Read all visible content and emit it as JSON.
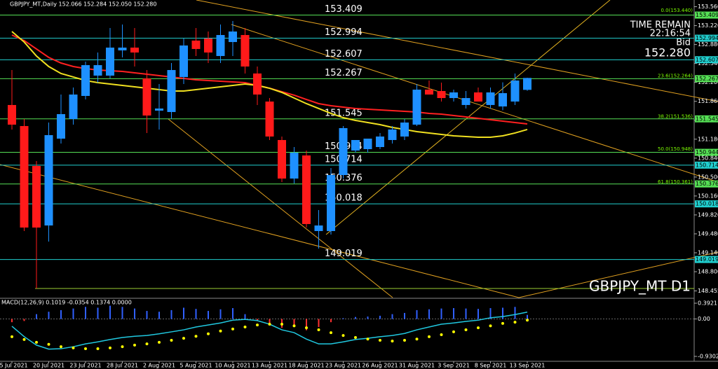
{
  "chart_data": {
    "type": "candlestick",
    "header": "GBPJPY_MT,Daily 152.066 152.284 152.050 152.280",
    "symbol_label": "GBPJPY_MT D1",
    "info": {
      "time_remain_label": "TIME REMAIN",
      "time": "22:16:54",
      "bid_label": "Bid",
      "bid": "152.280"
    },
    "categories": [
      "15 Jul 2021",
      null,
      null,
      "20 Jul 2021",
      null,
      null,
      "23 Jul 2021",
      null,
      null,
      "28 Jul 2021",
      null,
      null,
      "2 Aug 2021",
      null,
      null,
      "5 Aug 2021",
      null,
      null,
      "10 Aug 2021",
      null,
      null,
      "13 Aug 2021",
      null,
      null,
      "18 Aug 2021",
      null,
      null,
      "23 Aug 2021",
      null,
      null,
      "26 Aug 2021",
      null,
      null,
      "31 Aug 2021",
      null,
      null,
      "3 Sep 2021",
      null,
      null,
      "8 Sep 2021",
      null,
      null,
      "13 Sep 2021"
    ],
    "open": [
      151.794,
      151.416,
      150.699,
      149.63,
      151.19,
      151.542,
      151.957,
      152.322,
      152.322,
      152.775,
      152.825,
      152.271,
      151.693,
      151.668,
      152.297,
      152.951,
      152.988,
      152.674,
      152.925,
      153.051,
      152.36,
      151.856,
      151.165,
      150.473,
      150.888,
      149.53,
      149.53,
      150.536,
      150.976,
      151.001,
      151.039,
      151.165,
      151.228,
      151.441,
      152.07,
      152.045,
      151.919,
      151.794,
      152.02,
      151.794,
      151.768,
      151.856,
      152.066
    ],
    "high": [
      152.422,
      151.542,
      150.787,
      151.479,
      151.982,
      152.108,
      152.573,
      152.737,
      153.177,
      153.24,
      153.177,
      152.422,
      152.171,
      152.548,
      152.988,
      153.177,
      153.114,
      153.24,
      153.303,
      153.177,
      152.485,
      151.919,
      151.228,
      151.039,
      150.976,
      149.907,
      150.662,
      151.416,
      151.165,
      151.19,
      151.291,
      151.416,
      151.542,
      152.171,
      152.234,
      152.196,
      152.07,
      152.045,
      152.108,
      152.108,
      152.2,
      152.36,
      152.284
    ],
    "low": [
      151.354,
      149.53,
      148.499,
      149.341,
      151.102,
      151.441,
      151.894,
      152.196,
      152.271,
      152.649,
      152.485,
      151.291,
      151.354,
      151.542,
      152.171,
      152.674,
      152.548,
      152.548,
      152.674,
      152.36,
      151.794,
      151.165,
      150.41,
      150.385,
      149.593,
      149.215,
      149.467,
      150.473,
      150.938,
      150.938,
      151.001,
      151.102,
      151.165,
      151.416,
      151.982,
      151.856,
      151.856,
      151.73,
      151.856,
      151.73,
      151.7,
      151.794,
      152.05
    ],
    "close": [
      151.441,
      149.593,
      149.593,
      151.253,
      151.63,
      151.982,
      152.51,
      152.51,
      152.825,
      152.825,
      152.737,
      151.605,
      151.731,
      152.422,
      152.863,
      152.8,
      152.737,
      153.051,
      153.114,
      152.485,
      151.982,
      151.228,
      150.473,
      150.938,
      149.656,
      149.63,
      150.536,
      151.379,
      151.165,
      151.19,
      151.228,
      151.354,
      151.479,
      152.07,
      151.982,
      151.919,
      152.02,
      151.919,
      151.856,
      152.02,
      152.007,
      152.234,
      152.28
    ],
    "up_color": "#1e90ff",
    "down_color": "#ff1a1a",
    "lines": [
      {
        "color": "#ff2020",
        "values": [
          153.051,
          152.951,
          152.8,
          152.649,
          152.548,
          152.485,
          152.448,
          152.422,
          152.41,
          152.397,
          152.372,
          152.347,
          152.322,
          152.297,
          152.271,
          152.246,
          152.234,
          152.221,
          152.209,
          152.196,
          152.146,
          152.095,
          152.033,
          151.97,
          151.894,
          151.819,
          151.781,
          151.756,
          151.731,
          151.718,
          151.706,
          151.693,
          151.68,
          151.668,
          151.643,
          151.63,
          151.605,
          151.58,
          151.555,
          151.53,
          151.504,
          151.479,
          151.454
        ]
      },
      {
        "color": "#f0e020",
        "values": [
          153.114,
          152.925,
          152.674,
          152.485,
          152.36,
          152.297,
          152.234,
          152.196,
          152.171,
          152.146,
          152.121,
          152.095,
          152.07,
          152.045,
          152.045,
          152.07,
          152.095,
          152.121,
          152.146,
          152.171,
          152.146,
          152.095,
          152.02,
          151.919,
          151.819,
          151.731,
          151.643,
          151.567,
          151.517,
          151.479,
          151.441,
          151.391,
          151.354,
          151.316,
          151.291,
          151.265,
          151.24,
          151.228,
          151.215,
          151.215,
          151.24,
          151.291,
          151.354
        ]
      }
    ],
    "ylim": [
      148.335,
      153.68
    ],
    "yticks": [
      {
        "value": 153.56,
        "label": "153.560"
      },
      {
        "value": 153.22,
        "label": "153.220"
      },
      {
        "value": 152.88,
        "label": "152.880"
      },
      {
        "value": 152.54,
        "label": "152.540"
      },
      {
        "value": 152.2,
        "label": "152.200"
      },
      {
        "value": 151.86,
        "label": "151.860"
      },
      {
        "value": 151.52,
        "label": "151.520"
      },
      {
        "value": 151.18,
        "label": "151.180"
      },
      {
        "value": 150.84,
        "label": "150.840"
      },
      {
        "value": 150.5,
        "label": "150.500"
      },
      {
        "value": 150.16,
        "label": "150.160"
      },
      {
        "value": 149.82,
        "label": "149.820"
      },
      {
        "value": 149.48,
        "label": "149.480"
      },
      {
        "value": 149.14,
        "label": "149.140"
      },
      {
        "value": 148.8,
        "label": "148.800"
      },
      148.455
    ],
    "levels": [
      {
        "value": 153.409,
        "color": "#55e055"
      },
      {
        "value": 152.994,
        "color": "#20c8c8"
      },
      {
        "value": 152.607,
        "color": "#20d0d0"
      },
      {
        "value": 152.267,
        "color": "#55e055"
      },
      {
        "value": 151.545,
        "color": "#55e055"
      },
      {
        "value": 150.944,
        "color": "#55e055"
      },
      {
        "value": 150.714,
        "color": "#20d0d0"
      },
      {
        "value": 150.376,
        "color": "#55e055"
      },
      {
        "value": 150.018,
        "color": "#20d0d0"
      },
      {
        "value": 149.019,
        "color": "#20d0d0"
      }
    ],
    "fib_labels": [
      {
        "value": 153.44,
        "label": "0.0(153.440)"
      },
      {
        "value": 152.264,
        "label": "23.6(152.264)"
      },
      {
        "value": 151.536,
        "label": "38.2(151.536)"
      },
      {
        "value": 150.948,
        "label": "50.0(150.948)"
      },
      {
        "value": 150.361,
        "label": "61.8(150.361)"
      }
    ],
    "macd": {
      "title": "MACD(12,26,9) 0.1019 -0.0354 0.1374 0.0000",
      "ylim": [
        -1.035,
        0.497
      ],
      "yticks": [
        0.3921,
        {
          "value": 0,
          "label": "0.00"
        },
        -0.9302
      ],
      "histogram": [
        -0.08,
        -0.05,
        0.12,
        0.18,
        0.22,
        0.26,
        0.3,
        0.28,
        0.33,
        0.3,
        0.26,
        0.2,
        0.18,
        0.22,
        0.28,
        0.25,
        0.2,
        0.24,
        0.27,
        0.12,
        -0.05,
        -0.15,
        -0.22,
        -0.18,
        -0.28,
        -0.2,
        -0.08,
        0.02,
        0.05,
        0.06,
        0.08,
        0.12,
        0.15,
        0.22,
        0.24,
        0.26,
        0.27,
        0.26,
        0.25,
        0.27,
        0.28,
        0.3,
        0.1019
      ],
      "line": {
        "color": "#20c8e0",
        "values": [
          -0.18,
          -0.44,
          -0.65,
          -0.75,
          -0.74,
          -0.69,
          -0.62,
          -0.57,
          -0.51,
          -0.46,
          -0.43,
          -0.41,
          -0.37,
          -0.32,
          -0.27,
          -0.2,
          -0.15,
          -0.1,
          -0.03,
          -0.01,
          -0.04,
          -0.13,
          -0.27,
          -0.34,
          -0.5,
          -0.62,
          -0.62,
          -0.57,
          -0.51,
          -0.48,
          -0.44,
          -0.41,
          -0.36,
          -0.27,
          -0.2,
          -0.13,
          -0.1,
          -0.06,
          -0.03,
          0.03,
          0.06,
          0.11,
          0.17
        ]
      },
      "signal": {
        "color": "#ffff00",
        "values": [
          -0.44,
          -0.51,
          -0.58,
          -0.63,
          -0.69,
          -0.72,
          -0.74,
          -0.74,
          -0.72,
          -0.69,
          -0.65,
          -0.62,
          -0.58,
          -0.53,
          -0.48,
          -0.43,
          -0.37,
          -0.3,
          -0.25,
          -0.2,
          -0.15,
          -0.13,
          -0.13,
          -0.17,
          -0.22,
          -0.27,
          -0.34,
          -0.41,
          -0.46,
          -0.5,
          -0.53,
          -0.55,
          -0.53,
          -0.5,
          -0.44,
          -0.39,
          -0.32,
          -0.27,
          -0.22,
          -0.17,
          -0.11,
          -0.08,
          -0.03
        ]
      },
      "hist_up_color": "#3060ff",
      "hist_down_color": "#ff3030"
    }
  }
}
